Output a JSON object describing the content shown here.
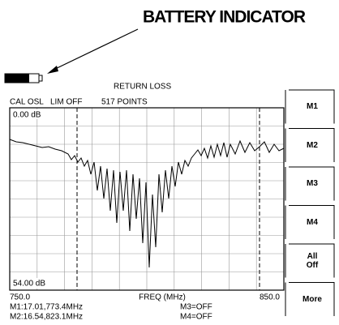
{
  "header": {
    "title": "BATTERY INDICATOR"
  },
  "display": {
    "title": "RETURN LOSS",
    "status": [
      "CAL OSL",
      "LIM OFF",
      "517 POINTS"
    ],
    "y_top": "0.00 dB",
    "y_bottom": "54.00 dB",
    "x_start": "750.0",
    "x_label": "FREQ (MHz)",
    "x_end": "850.0",
    "markers": [
      "M1:17.01,773.4MHz",
      "M3=OFF",
      "M2:16.54,823.1MHz",
      "M4=OFF"
    ]
  },
  "softkeys": [
    "M1",
    "M2",
    "M3",
    "M4",
    "All Off",
    "More"
  ]
}
